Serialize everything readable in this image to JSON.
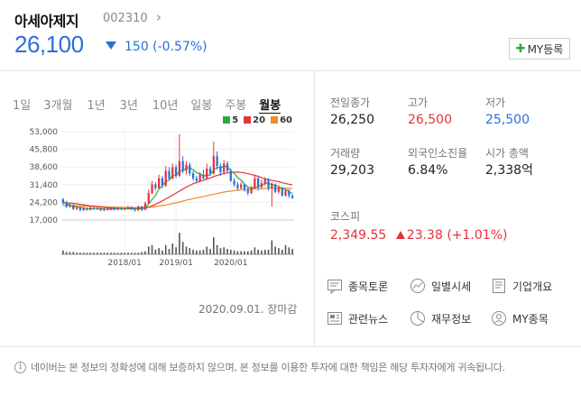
{
  "stock": {
    "name": "아세아제지",
    "code": "002310",
    "price": "26,100",
    "change": "150 (-0.57%)",
    "my_button": "MY등록"
  },
  "period_tabs": [
    "1일",
    "3개월",
    "1년",
    "3년",
    "10년",
    "일봉",
    "주봉",
    "월봉"
  ],
  "active_tab": "월봉",
  "chart": {
    "legend": [
      {
        "label": "5",
        "color": "#2bab3f"
      },
      {
        "label": "20",
        "color": "#e5323b"
      },
      {
        "label": "60",
        "color": "#f08a24"
      }
    ],
    "date_note": "2020.09.01. 장마감"
  },
  "chart_data": {
    "type": "candlestick",
    "y_ticks": [
      "53,000",
      "45,800",
      "38,600",
      "31,400",
      "24,200",
      "17,000"
    ],
    "x_ticks": [
      "2018/01",
      "2019/01",
      "2020/01"
    ],
    "ylim": [
      17000,
      53000
    ],
    "colors": {
      "up": "#e5323b",
      "down": "#2a6fdb",
      "ma5": "#2bab3f",
      "ma20": "#e5323b",
      "ma60": "#f08a24",
      "volume": "#555555"
    },
    "candles": [
      [
        25.5,
        24.0,
        26.0,
        23.0
      ],
      [
        24.0,
        22.5,
        24.8,
        21.8
      ],
      [
        22.5,
        23.0,
        23.8,
        22.0
      ],
      [
        23.0,
        21.5,
        23.5,
        21.0
      ],
      [
        21.5,
        22.0,
        22.6,
        21.0
      ],
      [
        22.0,
        21.0,
        22.5,
        20.5
      ],
      [
        21.0,
        21.8,
        22.4,
        20.6
      ],
      [
        21.8,
        21.2,
        22.2,
        20.8
      ],
      [
        21.2,
        22.0,
        22.6,
        20.9
      ],
      [
        22.0,
        21.5,
        22.4,
        21.0
      ],
      [
        21.5,
        21.8,
        22.3,
        21.0
      ],
      [
        21.8,
        21.0,
        22.0,
        20.6
      ],
      [
        21.0,
        21.6,
        22.0,
        20.5
      ],
      [
        21.6,
        21.2,
        22.0,
        20.8
      ],
      [
        21.2,
        21.8,
        22.2,
        20.9
      ],
      [
        21.8,
        21.3,
        22.1,
        20.8
      ],
      [
        21.3,
        21.9,
        22.4,
        21.0
      ],
      [
        21.9,
        21.4,
        22.3,
        21.0
      ],
      [
        21.4,
        21.8,
        22.1,
        20.9
      ],
      [
        21.8,
        22.2,
        22.8,
        21.5
      ],
      [
        22.2,
        21.5,
        22.6,
        21.0
      ],
      [
        21.5,
        21.0,
        21.8,
        20.4
      ],
      [
        21.0,
        22.5,
        23.0,
        20.8
      ],
      [
        22.5,
        21.2,
        22.8,
        20.6
      ],
      [
        21.2,
        23.8,
        24.6,
        21.0
      ],
      [
        23.8,
        28.0,
        29.5,
        23.5
      ],
      [
        28.0,
        31.5,
        33.0,
        27.5
      ],
      [
        31.5,
        30.0,
        32.5,
        29.0
      ],
      [
        30.0,
        34.0,
        35.5,
        29.5
      ],
      [
        34.0,
        31.0,
        35.0,
        30.0
      ],
      [
        31.0,
        37.0,
        39.0,
        30.5
      ],
      [
        37.0,
        34.0,
        38.5,
        33.0
      ],
      [
        34.0,
        38.5,
        40.0,
        33.5
      ],
      [
        38.5,
        35.0,
        39.5,
        34.0
      ],
      [
        35.0,
        41.0,
        52.0,
        34.5
      ],
      [
        41.0,
        37.0,
        43.0,
        36.0
      ],
      [
        37.0,
        39.5,
        41.0,
        35.5
      ],
      [
        39.5,
        36.0,
        40.5,
        35.0
      ],
      [
        36.0,
        34.0,
        37.0,
        33.0
      ],
      [
        34.0,
        33.0,
        35.0,
        32.0
      ],
      [
        33.0,
        35.5,
        36.5,
        32.5
      ],
      [
        35.5,
        34.0,
        37.5,
        33.5
      ],
      [
        34.0,
        38.0,
        40.0,
        33.5
      ],
      [
        38.0,
        36.0,
        39.0,
        35.0
      ],
      [
        36.0,
        43.0,
        49.0,
        35.5
      ],
      [
        43.0,
        39.0,
        45.0,
        37.5
      ],
      [
        39.0,
        36.5,
        40.0,
        35.0
      ],
      [
        36.5,
        40.0,
        41.5,
        35.5
      ],
      [
        40.0,
        37.0,
        41.0,
        36.0
      ],
      [
        37.0,
        33.0,
        38.0,
        32.5
      ],
      [
        33.0,
        31.5,
        34.0,
        30.5
      ],
      [
        31.5,
        30.0,
        32.5,
        29.0
      ],
      [
        30.0,
        31.5,
        32.5,
        29.5
      ],
      [
        31.5,
        29.5,
        32.0,
        28.5
      ],
      [
        29.5,
        28.0,
        30.5,
        27.0
      ],
      [
        28.0,
        30.0,
        31.0,
        27.5
      ],
      [
        30.0,
        34.0,
        35.5,
        29.5
      ],
      [
        34.0,
        30.5,
        34.5,
        29.0
      ],
      [
        30.5,
        32.0,
        33.5,
        29.5
      ],
      [
        32.0,
        33.5,
        34.5,
        31.0
      ],
      [
        33.5,
        30.0,
        34.0,
        29.0
      ],
      [
        30.0,
        31.5,
        32.5,
        22.5
      ],
      [
        31.5,
        28.5,
        32.0,
        28.0
      ],
      [
        28.5,
        30.0,
        31.0,
        27.5
      ],
      [
        30.0,
        27.0,
        30.5,
        26.5
      ],
      [
        27.0,
        29.0,
        29.5,
        26.5
      ],
      [
        29.0,
        27.0,
        29.5,
        26.0
      ],
      [
        27.0,
        26.1,
        27.5,
        25.5
      ]
    ],
    "ma5": [
      24.5,
      23.8,
      23.0,
      22.5,
      22.4,
      22.1,
      21.9,
      21.6,
      21.6,
      21.7,
      21.7,
      21.6,
      21.5,
      21.4,
      21.5,
      21.5,
      21.6,
      21.6,
      21.6,
      21.7,
      21.8,
      21.7,
      21.7,
      21.7,
      22.0,
      23.5,
      25.4,
      27.0,
      29.6,
      30.8,
      32.8,
      33.2,
      35.1,
      35.1,
      36.9,
      37.1,
      38.2,
      38.3,
      37.5,
      36.3,
      35.8,
      35.0,
      35.2,
      35.4,
      37.4,
      38.4,
      38.3,
      38.9,
      38.8,
      37.0,
      36.0,
      34.3,
      33.3,
      31.6,
      30.4,
      30.0,
      30.4,
      30.5,
      31.0,
      32.0,
      31.9,
      31.5,
      31.1,
      30.7,
      29.7,
      29.5,
      28.6,
      27.8
    ],
    "ma20": [
      24.0,
      24.0,
      23.9,
      23.8,
      23.6,
      23.4,
      23.2,
      23.0,
      22.8,
      22.7,
      22.5,
      22.3,
      22.2,
      22.0,
      21.9,
      21.8,
      21.7,
      21.6,
      21.6,
      21.6,
      21.6,
      21.6,
      21.6,
      21.7,
      21.8,
      22.2,
      22.8,
      23.4,
      24.1,
      24.8,
      25.6,
      26.3,
      27.2,
      28.0,
      28.8,
      29.6,
      30.4,
      31.1,
      31.8,
      32.3,
      32.8,
      33.2,
      33.7,
      34.1,
      34.7,
      35.2,
      35.6,
      36.0,
      36.2,
      36.4,
      36.5,
      36.5,
      36.4,
      36.2,
      35.9,
      35.5,
      35.2,
      34.8,
      34.3,
      33.8,
      33.5,
      33.2,
      32.9,
      32.6,
      32.2,
      31.9,
      31.6,
      31.3
    ],
    "ma60": [
      23.0,
      23.0,
      22.9,
      22.9,
      22.8,
      22.8,
      22.7,
      22.7,
      22.6,
      22.6,
      22.5,
      22.5,
      22.4,
      22.4,
      22.3,
      22.3,
      22.2,
      22.2,
      22.2,
      22.1,
      22.1,
      22.1,
      22.1,
      22.1,
      22.1,
      22.2,
      22.3,
      22.5,
      22.7,
      22.9,
      23.1,
      23.4,
      23.7,
      24.0,
      24.4,
      24.7,
      25.1,
      25.4,
      25.7,
      26.0,
      26.3,
      26.6,
      26.9,
      27.2,
      27.5,
      27.8,
      28.1,
      28.4,
      28.6,
      28.8,
      29.0,
      29.2,
      29.3,
      29.4,
      29.5,
      29.6,
      29.7,
      29.8,
      29.8,
      29.9,
      29.9,
      30.0,
      30.0,
      30.0,
      30.0,
      30.0,
      29.9,
      29.9
    ],
    "volume": [
      5,
      3,
      3,
      3,
      2,
      2,
      2,
      2,
      2,
      2,
      2,
      2,
      2,
      2,
      2,
      2,
      2,
      2,
      2,
      2,
      2,
      2,
      2,
      3,
      4,
      10,
      12,
      6,
      8,
      5,
      12,
      7,
      14,
      9,
      28,
      16,
      10,
      8,
      6,
      5,
      5,
      6,
      10,
      7,
      22,
      12,
      8,
      9,
      7,
      6,
      5,
      4,
      4,
      4,
      4,
      5,
      9,
      6,
      5,
      6,
      6,
      18,
      10,
      8,
      6,
      12,
      9,
      7
    ]
  },
  "stats": [
    {
      "label": "전일종가",
      "value": "26,250",
      "color": "normal"
    },
    {
      "label": "고가",
      "value": "26,500",
      "color": "red"
    },
    {
      "label": "저가",
      "value": "25,500",
      "color": "blue"
    },
    {
      "label": "거래량",
      "value": "29,203",
      "color": "normal"
    },
    {
      "label": "외국인소진율",
      "value": "6.84%",
      "color": "normal"
    },
    {
      "label": "시가 총액",
      "value": "2,338억",
      "color": "normal"
    }
  ],
  "kospi": {
    "label": "코스피",
    "value": "2,349.55",
    "change": "23.38 (+1.01%)"
  },
  "links": [
    {
      "label": "종목토론",
      "icon": "chat-icon"
    },
    {
      "label": "일별시세",
      "icon": "trend-icon"
    },
    {
      "label": "기업개요",
      "icon": "document-icon"
    },
    {
      "label": "관련뉴스",
      "icon": "news-icon"
    },
    {
      "label": "재무정보",
      "icon": "pie-icon"
    },
    {
      "label": "MY종목",
      "icon": "user-icon"
    }
  ],
  "footer": "네이버는 본 정보의 정확성에 대해 보증하지 않으며, 본 정보를 이용한 투자에 대한 책임은 해당 투자자에게 귀속됩니다."
}
